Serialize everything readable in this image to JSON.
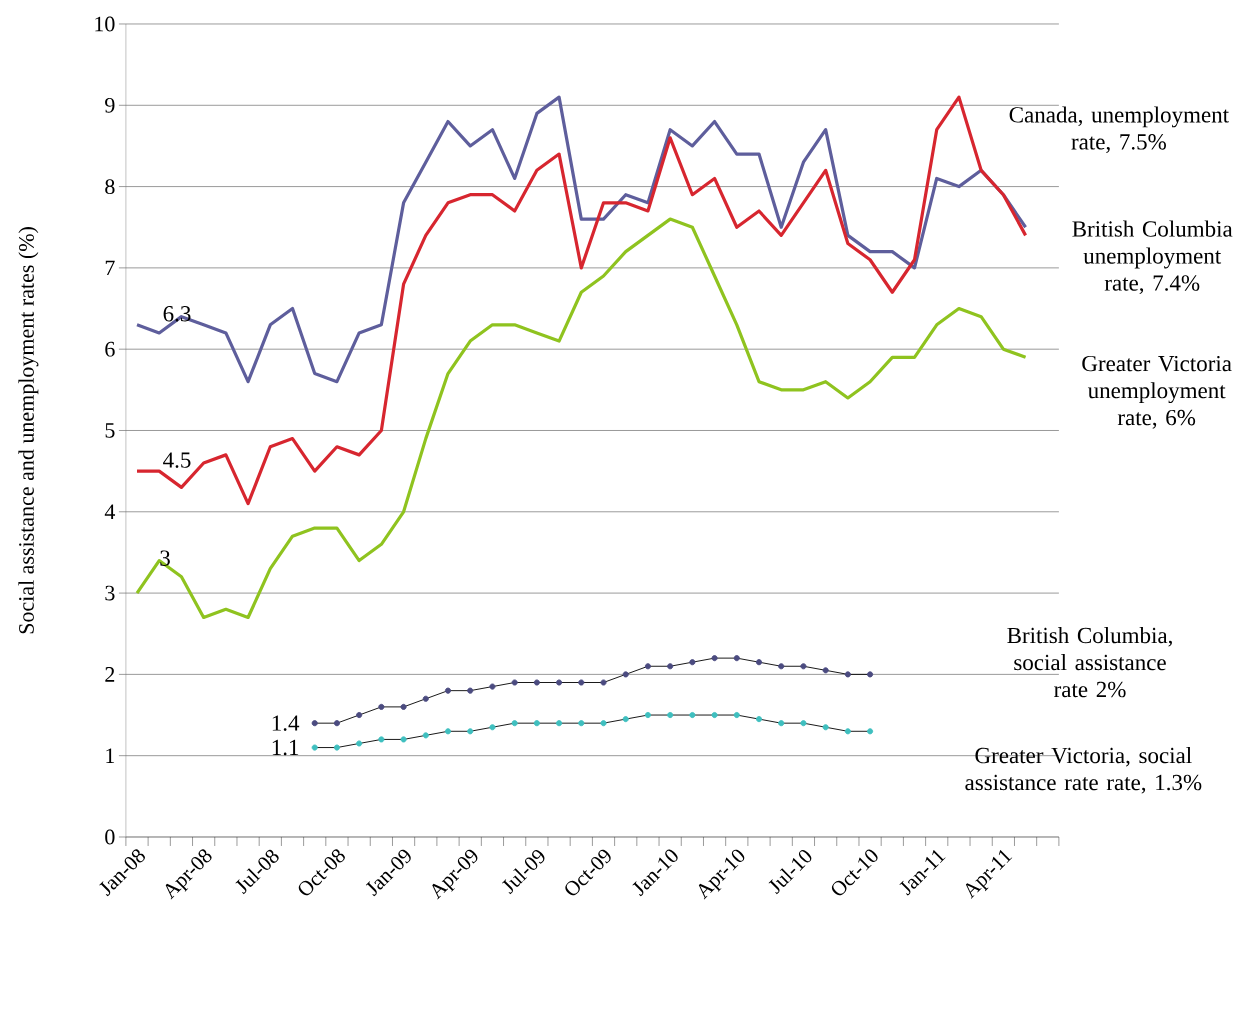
{
  "chart_data": {
    "type": "line",
    "ylabel": "Social assistance and unemployment rates (%)",
    "categories": [
      "Jan-08",
      null,
      null,
      "Apr-08",
      null,
      null,
      "Jul-08",
      null,
      null,
      "Oct-08",
      null,
      null,
      "Jan-09",
      null,
      null,
      "Apr-09",
      null,
      null,
      "Jul-09",
      null,
      null,
      "Oct-09",
      null,
      null,
      "Jan-10",
      null,
      null,
      "Apr-10",
      null,
      null,
      "Jul-10",
      null,
      null,
      "Oct-10",
      null,
      null,
      "Jan-11",
      null,
      null,
      "Apr-11",
      null,
      null
    ],
    "ylim": [
      0,
      10
    ],
    "yticks": [
      0,
      1,
      2,
      3,
      4,
      5,
      6,
      7,
      8,
      9,
      10
    ],
    "grid": "y",
    "legend": false,
    "series": [
      {
        "name": "Canada, unemployment rate, 7.5%",
        "color": "#5e5e9c",
        "marker": "none",
        "values": [
          6.3,
          6.2,
          6.4,
          6.3,
          6.2,
          5.6,
          6.3,
          6.5,
          5.7,
          5.6,
          6.2,
          6.3,
          7.8,
          8.3,
          8.8,
          8.5,
          8.7,
          8.1,
          8.9,
          9.1,
          7.6,
          7.6,
          7.9,
          7.8,
          8.7,
          8.5,
          8.8,
          8.4,
          8.4,
          7.5,
          8.3,
          8.7,
          7.4,
          7.2,
          7.2,
          7.0,
          8.1,
          8.0,
          8.2,
          7.9,
          7.5,
          null
        ]
      },
      {
        "name": "British Columbia unemployment rate, 7.4%",
        "color": "#d7262f",
        "marker": "none",
        "values": [
          4.5,
          4.5,
          4.3,
          4.6,
          4.7,
          4.1,
          4.8,
          4.9,
          4.5,
          4.8,
          4.7,
          5.0,
          6.8,
          7.4,
          7.8,
          7.9,
          7.9,
          7.7,
          8.2,
          8.4,
          7.0,
          7.8,
          7.8,
          7.7,
          8.6,
          7.9,
          8.1,
          7.5,
          7.7,
          7.4,
          7.8,
          8.2,
          7.3,
          7.1,
          6.7,
          7.1,
          8.7,
          9.1,
          8.2,
          7.9,
          7.4,
          null
        ]
      },
      {
        "name": "Greater Victoria unemployment rate, 6%",
        "color": "#8fc31f",
        "marker": "none",
        "values": [
          3.0,
          3.4,
          3.2,
          2.7,
          2.8,
          2.7,
          3.3,
          3.7,
          3.8,
          3.8,
          3.4,
          3.6,
          4.0,
          4.9,
          5.7,
          6.1,
          6.3,
          6.3,
          6.2,
          6.1,
          6.7,
          6.9,
          7.2,
          7.4,
          7.6,
          7.5,
          6.9,
          6.3,
          5.6,
          5.5,
          5.5,
          5.6,
          5.4,
          5.6,
          5.9,
          5.9,
          6.3,
          6.5,
          6.4,
          6.0,
          5.9,
          null
        ]
      },
      {
        "name": "British Columbia, social assistance rate 2%",
        "color": "#4b4b80",
        "marker": "circle",
        "values": [
          null,
          null,
          null,
          null,
          null,
          null,
          null,
          null,
          1.4,
          1.4,
          1.5,
          1.6,
          1.6,
          1.7,
          1.8,
          1.8,
          1.85,
          1.9,
          1.9,
          1.9,
          1.9,
          1.9,
          2.0,
          2.1,
          2.1,
          2.15,
          2.2,
          2.2,
          2.15,
          2.1,
          2.1,
          2.05,
          2.0,
          2.0,
          null,
          null,
          null,
          null,
          null,
          null,
          null,
          null
        ]
      },
      {
        "name": "Greater Victoria, social assistance rate rate, 1.3%",
        "color": "#3fbfbf",
        "marker": "circle",
        "values": [
          null,
          null,
          null,
          null,
          null,
          null,
          null,
          null,
          1.1,
          1.1,
          1.15,
          1.2,
          1.2,
          1.25,
          1.3,
          1.3,
          1.35,
          1.4,
          1.4,
          1.4,
          1.4,
          1.4,
          1.45,
          1.5,
          1.5,
          1.5,
          1.5,
          1.5,
          1.45,
          1.4,
          1.4,
          1.35,
          1.3,
          1.3,
          null,
          null,
          null,
          null,
          null,
          null,
          null,
          null
        ]
      }
    ],
    "annotations": [
      {
        "text": "6.3",
        "x": "Jan-08",
        "y": 6.3
      },
      {
        "text": "4.5",
        "x": "Jan-08",
        "y": 4.5
      },
      {
        "text": "3",
        "x": "Jan-08",
        "y": 3
      },
      {
        "text": "1.4",
        "x": "Oct-08",
        "y": 1.4
      },
      {
        "text": "1.1",
        "x": "Oct-08",
        "y": 1.1
      }
    ]
  }
}
